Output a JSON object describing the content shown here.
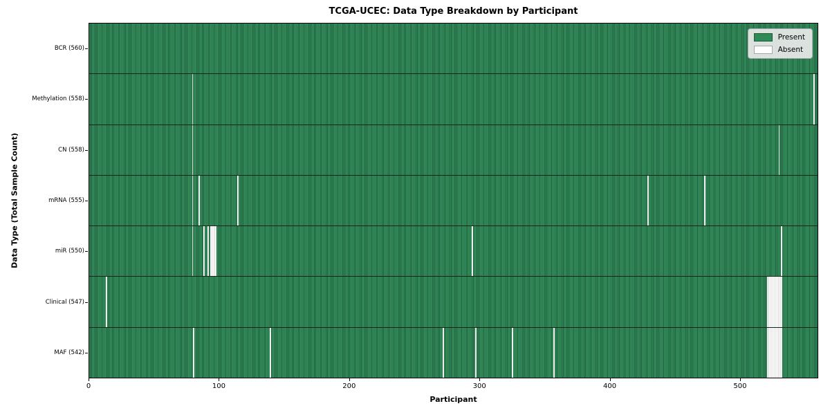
{
  "title": "TCGA-UCEC: Data Type Breakdown by Participant",
  "xlabel": "Participant",
  "ylabel": "Data Type (Total Sample Count)",
  "legend": {
    "entries": [
      {
        "label": "Present",
        "color": "#2e8b57"
      },
      {
        "label": "Absent",
        "color": "#ffffff"
      }
    ]
  },
  "colors": {
    "present": "#2e8b57",
    "present_edge": "#1c5b39",
    "absent": "#ffffff",
    "border": "#000000",
    "legend_bg": "#eaeaea"
  },
  "chart_data": {
    "type": "heatmap",
    "orientation": "presence-absence matrix, one column per participant",
    "total_participants": 560,
    "x_ticks": [
      0,
      100,
      200,
      300,
      400,
      500
    ],
    "xlim": [
      0,
      560
    ],
    "grid": false,
    "legend_position": "upper right",
    "rows": [
      {
        "name": "bcr",
        "label": "BCR (560)",
        "count": 560,
        "absent_participants": []
      },
      {
        "name": "methylation",
        "label": "Methylation (558)",
        "count": 558,
        "absent_participants": [
          79,
          557
        ]
      },
      {
        "name": "cn",
        "label": "CN (558)",
        "count": 558,
        "absent_participants": [
          79,
          530
        ]
      },
      {
        "name": "mrna",
        "label": "mRNA (555)",
        "count": 555,
        "absent_participants": [
          79,
          84,
          114,
          429,
          473
        ]
      },
      {
        "name": "mir",
        "label": "miR (550)",
        "count": 550,
        "absent_participants": [
          79,
          88,
          91,
          93,
          94,
          95,
          96,
          97,
          294,
          532
        ]
      },
      {
        "name": "clinical",
        "label": "Clinical (547)",
        "count": 547,
        "absent_participants": [
          13,
          521,
          522,
          523,
          524,
          525,
          526,
          527,
          528,
          529,
          530,
          531,
          532
        ]
      },
      {
        "name": "maf",
        "label": "MAF (542)",
        "count": 542,
        "absent_participants": [
          80,
          139,
          272,
          297,
          325,
          357,
          521,
          522,
          523,
          524,
          525,
          526,
          527,
          528,
          529,
          530,
          531,
          532
        ]
      }
    ]
  }
}
